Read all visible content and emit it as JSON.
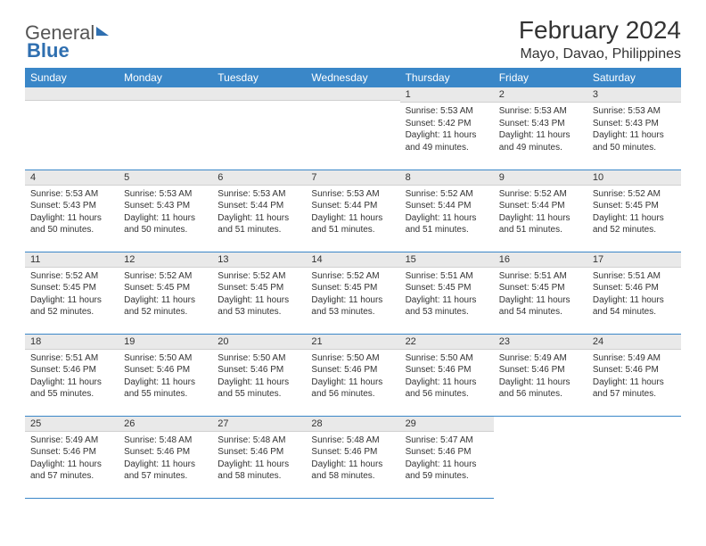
{
  "brand": {
    "part1": "General",
    "part2": "Blue"
  },
  "title": "February 2024",
  "subtitle": "Mayo, Davao, Philippines",
  "colors": {
    "header_bg": "#3a87c8",
    "header_text": "#ffffff",
    "daynum_bg": "#e9e9e9",
    "rule": "#3a87c8",
    "brand_accent": "#2f6fb0"
  },
  "day_headers": [
    "Sunday",
    "Monday",
    "Tuesday",
    "Wednesday",
    "Thursday",
    "Friday",
    "Saturday"
  ],
  "weeks": [
    [
      {
        "n": "",
        "lines": [
          "",
          "",
          "",
          ""
        ]
      },
      {
        "n": "",
        "lines": [
          "",
          "",
          "",
          ""
        ]
      },
      {
        "n": "",
        "lines": [
          "",
          "",
          "",
          ""
        ]
      },
      {
        "n": "",
        "lines": [
          "",
          "",
          "",
          ""
        ]
      },
      {
        "n": "1",
        "lines": [
          "Sunrise: 5:53 AM",
          "Sunset: 5:42 PM",
          "Daylight: 11 hours",
          "and 49 minutes."
        ]
      },
      {
        "n": "2",
        "lines": [
          "Sunrise: 5:53 AM",
          "Sunset: 5:43 PM",
          "Daylight: 11 hours",
          "and 49 minutes."
        ]
      },
      {
        "n": "3",
        "lines": [
          "Sunrise: 5:53 AM",
          "Sunset: 5:43 PM",
          "Daylight: 11 hours",
          "and 50 minutes."
        ]
      }
    ],
    [
      {
        "n": "4",
        "lines": [
          "Sunrise: 5:53 AM",
          "Sunset: 5:43 PM",
          "Daylight: 11 hours",
          "and 50 minutes."
        ]
      },
      {
        "n": "5",
        "lines": [
          "Sunrise: 5:53 AM",
          "Sunset: 5:43 PM",
          "Daylight: 11 hours",
          "and 50 minutes."
        ]
      },
      {
        "n": "6",
        "lines": [
          "Sunrise: 5:53 AM",
          "Sunset: 5:44 PM",
          "Daylight: 11 hours",
          "and 51 minutes."
        ]
      },
      {
        "n": "7",
        "lines": [
          "Sunrise: 5:53 AM",
          "Sunset: 5:44 PM",
          "Daylight: 11 hours",
          "and 51 minutes."
        ]
      },
      {
        "n": "8",
        "lines": [
          "Sunrise: 5:52 AM",
          "Sunset: 5:44 PM",
          "Daylight: 11 hours",
          "and 51 minutes."
        ]
      },
      {
        "n": "9",
        "lines": [
          "Sunrise: 5:52 AM",
          "Sunset: 5:44 PM",
          "Daylight: 11 hours",
          "and 51 minutes."
        ]
      },
      {
        "n": "10",
        "lines": [
          "Sunrise: 5:52 AM",
          "Sunset: 5:45 PM",
          "Daylight: 11 hours",
          "and 52 minutes."
        ]
      }
    ],
    [
      {
        "n": "11",
        "lines": [
          "Sunrise: 5:52 AM",
          "Sunset: 5:45 PM",
          "Daylight: 11 hours",
          "and 52 minutes."
        ]
      },
      {
        "n": "12",
        "lines": [
          "Sunrise: 5:52 AM",
          "Sunset: 5:45 PM",
          "Daylight: 11 hours",
          "and 52 minutes."
        ]
      },
      {
        "n": "13",
        "lines": [
          "Sunrise: 5:52 AM",
          "Sunset: 5:45 PM",
          "Daylight: 11 hours",
          "and 53 minutes."
        ]
      },
      {
        "n": "14",
        "lines": [
          "Sunrise: 5:52 AM",
          "Sunset: 5:45 PM",
          "Daylight: 11 hours",
          "and 53 minutes."
        ]
      },
      {
        "n": "15",
        "lines": [
          "Sunrise: 5:51 AM",
          "Sunset: 5:45 PM",
          "Daylight: 11 hours",
          "and 53 minutes."
        ]
      },
      {
        "n": "16",
        "lines": [
          "Sunrise: 5:51 AM",
          "Sunset: 5:45 PM",
          "Daylight: 11 hours",
          "and 54 minutes."
        ]
      },
      {
        "n": "17",
        "lines": [
          "Sunrise: 5:51 AM",
          "Sunset: 5:46 PM",
          "Daylight: 11 hours",
          "and 54 minutes."
        ]
      }
    ],
    [
      {
        "n": "18",
        "lines": [
          "Sunrise: 5:51 AM",
          "Sunset: 5:46 PM",
          "Daylight: 11 hours",
          "and 55 minutes."
        ]
      },
      {
        "n": "19",
        "lines": [
          "Sunrise: 5:50 AM",
          "Sunset: 5:46 PM",
          "Daylight: 11 hours",
          "and 55 minutes."
        ]
      },
      {
        "n": "20",
        "lines": [
          "Sunrise: 5:50 AM",
          "Sunset: 5:46 PM",
          "Daylight: 11 hours",
          "and 55 minutes."
        ]
      },
      {
        "n": "21",
        "lines": [
          "Sunrise: 5:50 AM",
          "Sunset: 5:46 PM",
          "Daylight: 11 hours",
          "and 56 minutes."
        ]
      },
      {
        "n": "22",
        "lines": [
          "Sunrise: 5:50 AM",
          "Sunset: 5:46 PM",
          "Daylight: 11 hours",
          "and 56 minutes."
        ]
      },
      {
        "n": "23",
        "lines": [
          "Sunrise: 5:49 AM",
          "Sunset: 5:46 PM",
          "Daylight: 11 hours",
          "and 56 minutes."
        ]
      },
      {
        "n": "24",
        "lines": [
          "Sunrise: 5:49 AM",
          "Sunset: 5:46 PM",
          "Daylight: 11 hours",
          "and 57 minutes."
        ]
      }
    ],
    [
      {
        "n": "25",
        "lines": [
          "Sunrise: 5:49 AM",
          "Sunset: 5:46 PM",
          "Daylight: 11 hours",
          "and 57 minutes."
        ]
      },
      {
        "n": "26",
        "lines": [
          "Sunrise: 5:48 AM",
          "Sunset: 5:46 PM",
          "Daylight: 11 hours",
          "and 57 minutes."
        ]
      },
      {
        "n": "27",
        "lines": [
          "Sunrise: 5:48 AM",
          "Sunset: 5:46 PM",
          "Daylight: 11 hours",
          "and 58 minutes."
        ]
      },
      {
        "n": "28",
        "lines": [
          "Sunrise: 5:48 AM",
          "Sunset: 5:46 PM",
          "Daylight: 11 hours",
          "and 58 minutes."
        ]
      },
      {
        "n": "29",
        "lines": [
          "Sunrise: 5:47 AM",
          "Sunset: 5:46 PM",
          "Daylight: 11 hours",
          "and 59 minutes."
        ]
      },
      {
        "n": "",
        "lines": [
          "",
          "",
          "",
          ""
        ]
      },
      {
        "n": "",
        "lines": [
          "",
          "",
          "",
          ""
        ]
      }
    ]
  ]
}
